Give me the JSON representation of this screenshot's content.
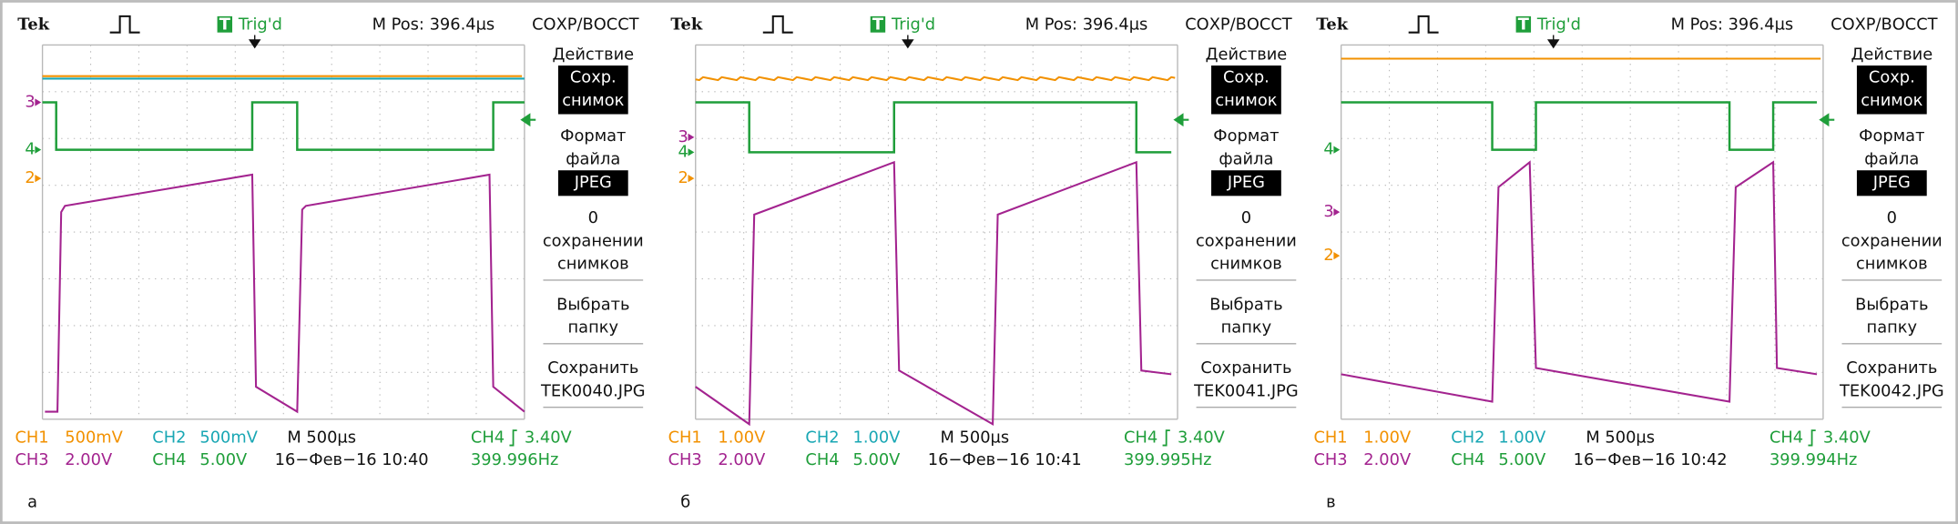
{
  "panels": [
    {
      "caption": "а",
      "header": {
        "brand": "Tek",
        "trigger_badge": "T",
        "trigger_status": "Trig'd",
        "position": "M Pos: 396.4µs",
        "menu_title": "СОХР/ВОССТ"
      },
      "channel_markers": [
        "3",
        "4",
        "2"
      ],
      "menu": [
        {
          "lines": [
            "Действие"
          ]
        },
        {
          "lines": [
            "Сохр.",
            "снимок"
          ],
          "highlight": true
        },
        {
          "lines": [
            "Формат",
            "файла"
          ]
        },
        {
          "lines": [
            "JPEG"
          ],
          "highlight": true
        },
        {
          "lines": [
            "0",
            "сохранении",
            "снимков"
          ]
        },
        {
          "lines": [
            "Выбрать",
            "папку"
          ]
        },
        {
          "lines": [
            "Сохранить",
            "TEK0040.JPG"
          ]
        }
      ],
      "footer": {
        "ch1": "CH1",
        "ch1_scale": "500mV",
        "ch2": "CH2",
        "ch2_scale": "500mV",
        "timebase": "M 500µs",
        "trigger_source": "CH4",
        "trigger_level": "3.40V",
        "ch3": "CH3",
        "ch3_scale": "2.00V",
        "ch4": "CH4",
        "ch4_scale": "5.00V",
        "date": "16−Фев−16 10:40",
        "frequency": "399.996Hz"
      }
    },
    {
      "caption": "б",
      "header": {
        "brand": "Tek",
        "trigger_badge": "T",
        "trigger_status": "Trig'd",
        "position": "M Pos: 396.4µs",
        "menu_title": "СОХР/ВОССТ"
      },
      "channel_markers": [
        "3",
        "4",
        "2"
      ],
      "menu": [
        {
          "lines": [
            "Действие"
          ]
        },
        {
          "lines": [
            "Сохр.",
            "снимок"
          ],
          "highlight": true
        },
        {
          "lines": [
            "Формат",
            "файла"
          ]
        },
        {
          "lines": [
            "JPEG"
          ],
          "highlight": true
        },
        {
          "lines": [
            "0",
            "сохранении",
            "снимков"
          ]
        },
        {
          "lines": [
            "Выбрать",
            "папку"
          ]
        },
        {
          "lines": [
            "Сохранить",
            "TEK0041.JPG"
          ]
        }
      ],
      "footer": {
        "ch1": "CH1",
        "ch1_scale": "1.00V",
        "ch2": "CH2",
        "ch2_scale": "1.00V",
        "timebase": "M 500µs",
        "trigger_source": "CH4",
        "trigger_level": "3.40V",
        "ch3": "CH3",
        "ch3_scale": "2.00V",
        "ch4": "CH4",
        "ch4_scale": "5.00V",
        "date": "16−Фев−16 10:41",
        "frequency": "399.995Hz"
      }
    },
    {
      "caption": "в",
      "header": {
        "brand": "Tek",
        "trigger_badge": "T",
        "trigger_status": "Trig'd",
        "position": "M Pos: 396.4µs",
        "menu_title": "СОХР/ВОССТ"
      },
      "channel_markers": [
        "4",
        "3",
        "2"
      ],
      "menu": [
        {
          "lines": [
            "Действие"
          ]
        },
        {
          "lines": [
            "Сохр.",
            "снимок"
          ],
          "highlight": true
        },
        {
          "lines": [
            "Формат",
            "файла"
          ]
        },
        {
          "lines": [
            "JPEG"
          ],
          "highlight": true
        },
        {
          "lines": [
            "0",
            "сохранении",
            "снимков"
          ]
        },
        {
          "lines": [
            "Выбрать",
            "папку"
          ]
        },
        {
          "lines": [
            "Сохранить",
            "TEK0042.JPG"
          ]
        }
      ],
      "footer": {
        "ch1": "CH1",
        "ch1_scale": "1.00V",
        "ch2": "CH2",
        "ch2_scale": "1.00V",
        "timebase": "M 500µs",
        "trigger_source": "CH4",
        "trigger_level": "3.40V",
        "ch3": "CH3",
        "ch3_scale": "2.00V",
        "ch4": "CH4",
        "ch4_scale": "5.00V",
        "date": "16−Фев−16 10:42",
        "frequency": "399.994Hz"
      }
    }
  ]
}
